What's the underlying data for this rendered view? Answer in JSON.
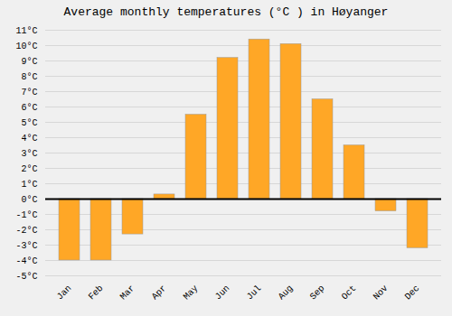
{
  "chart_data": {
    "type": "bar",
    "title": "Average monthly temperatures (°C ) in Høyanger",
    "categories": [
      "Jan",
      "Feb",
      "Mar",
      "Apr",
      "May",
      "Jun",
      "Jul",
      "Aug",
      "Sep",
      "Oct",
      "Nov",
      "Dec"
    ],
    "values": [
      -4.0,
      -4.0,
      -2.3,
      0.3,
      5.5,
      9.2,
      10.4,
      10.1,
      6.5,
      3.5,
      -0.8,
      -3.2
    ],
    "color": "#FFA726",
    "ylim": [
      -5,
      11
    ],
    "yticks": [
      {
        "value": -5,
        "label": "-5°C"
      },
      {
        "value": -4,
        "label": "-4°C"
      },
      {
        "value": -3,
        "label": "-3°C"
      },
      {
        "value": -2,
        "label": "-2°C"
      },
      {
        "value": -1,
        "label": "-1°C"
      },
      {
        "value": 0,
        "label": "0°C"
      },
      {
        "value": 1,
        "label": "1°C"
      },
      {
        "value": 2,
        "label": "2°C"
      },
      {
        "value": 3,
        "label": "3°C"
      },
      {
        "value": 4,
        "label": "4°C"
      },
      {
        "value": 5,
        "label": "5°C"
      },
      {
        "value": 6,
        "label": "6°C"
      },
      {
        "value": 7,
        "label": "7°C"
      },
      {
        "value": 8,
        "label": "8°C"
      },
      {
        "value": 9,
        "label": "9°C"
      },
      {
        "value": 10,
        "label": "10°C"
      },
      {
        "value": 11,
        "label": "11°C"
      }
    ],
    "grid": true
  }
}
